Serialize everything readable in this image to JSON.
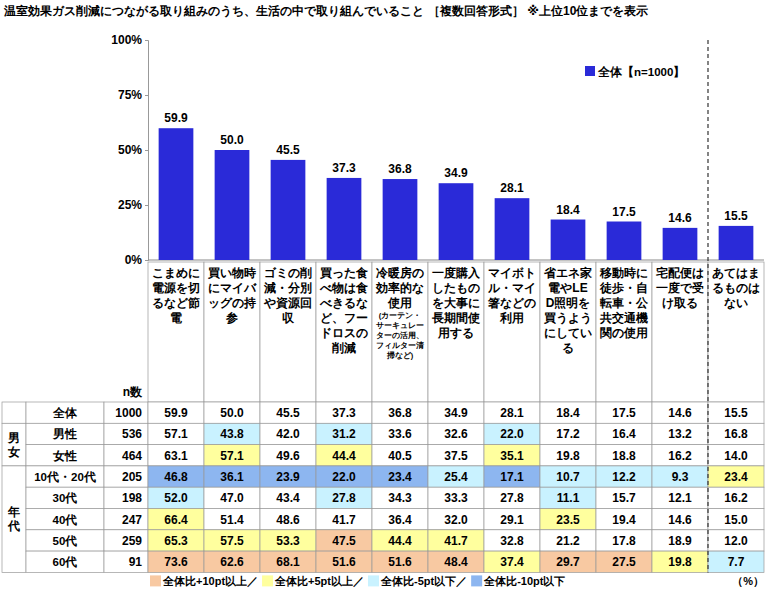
{
  "chart_data": {
    "type": "bar",
    "title": "温室効果ガス削減につながる取り組みのうち、生活の中で取り組んでいること",
    "subtitle": "［複数回答形式］ ※上位10位までを表示",
    "categories": [
      "こまめに電源を切るなど節電",
      "買い物時にマイバッグの持参",
      "ゴミの削減・分別や資源回収",
      "買った食べ物は食べきるなど、フードロスの削減",
      "冷暖房の効率的な使用",
      "一度購入したものを大事に長期間使用する",
      "マイボトル・マイ箸などの利用",
      "省エネ家電やLED照明を買うようにしている",
      "移動時に徒歩・自転車・公共交通機関の使用",
      "宅配便は一度で受け取る",
      "あてはまるものはない"
    ],
    "category_notes": [
      null,
      null,
      null,
      null,
      "(カーテン・サーキュレーターの活用、フィルター清掃など)",
      null,
      null,
      null,
      null,
      null,
      null
    ],
    "series": [
      {
        "name": "全体【n=1000】",
        "color": "#2a2ad8",
        "values": [
          59.9,
          50.0,
          45.5,
          37.3,
          36.8,
          34.9,
          28.1,
          18.4,
          17.5,
          14.6,
          15.5
        ],
        "value_labels": [
          "59.9",
          "50.0",
          "45.5",
          "37.3",
          "36.8",
          "34.9",
          "28.1",
          "18.4",
          "17.5",
          "14.6",
          "15.5"
        ]
      }
    ],
    "ylim": [
      0,
      100
    ],
    "yticks": [
      {
        "value": 0,
        "label": "0%"
      },
      {
        "value": 25,
        "label": "25%"
      },
      {
        "value": 50,
        "label": "50%"
      },
      {
        "value": 75,
        "label": "75%"
      },
      {
        "value": 100,
        "label": "100%"
      }
    ],
    "grid": false,
    "legend": "top-right",
    "data_labels": true,
    "table": {
      "n_header": "n数",
      "unit_label": "（%）",
      "rows": [
        {
          "group": null,
          "label": "全体",
          "n": 1000,
          "values": [
            59.9,
            50.0,
            45.5,
            37.3,
            36.8,
            34.9,
            28.1,
            18.4,
            17.5,
            14.6,
            15.5
          ],
          "value_labels": [
            "59.9",
            "50.0",
            "45.5",
            "37.3",
            "36.8",
            "34.9",
            "28.1",
            "18.4",
            "17.5",
            "14.6",
            "15.5"
          ]
        },
        {
          "group": "男女",
          "label": "男性",
          "n": 536,
          "values": [
            57.1,
            43.8,
            42.0,
            31.2,
            33.6,
            32.6,
            22.0,
            17.2,
            16.4,
            13.2,
            16.8
          ],
          "value_labels": [
            "57.1",
            "43.8",
            "42.0",
            "31.2",
            "33.6",
            "32.6",
            "22.0",
            "17.2",
            "16.4",
            "13.2",
            "16.8"
          ]
        },
        {
          "group": "男女",
          "label": "女性",
          "n": 464,
          "values": [
            63.1,
            57.1,
            49.6,
            44.4,
            40.5,
            37.5,
            35.1,
            19.8,
            18.8,
            16.2,
            14.0
          ],
          "value_labels": [
            "63.1",
            "57.1",
            "49.6",
            "44.4",
            "40.5",
            "37.5",
            "35.1",
            "19.8",
            "18.8",
            "16.2",
            "14.0"
          ]
        },
        {
          "group": "年代",
          "label": "10代・20代",
          "n": 205,
          "values": [
            46.8,
            36.1,
            23.9,
            22.0,
            23.4,
            25.4,
            17.1,
            10.7,
            12.2,
            9.3,
            23.4
          ],
          "value_labels": [
            "46.8",
            "36.1",
            "23.9",
            "22.0",
            "23.4",
            "25.4",
            "17.1",
            "10.7",
            "12.2",
            "9.3",
            "23.4"
          ]
        },
        {
          "group": "年代",
          "label": "30代",
          "n": 198,
          "values": [
            52.0,
            47.0,
            43.4,
            27.8,
            34.3,
            33.3,
            27.8,
            11.1,
            15.7,
            12.1,
            16.2
          ],
          "value_labels": [
            "52.0",
            "47.0",
            "43.4",
            "27.8",
            "34.3",
            "33.3",
            "27.8",
            "11.1",
            "15.7",
            "12.1",
            "16.2"
          ]
        },
        {
          "group": "年代",
          "label": "40代",
          "n": 247,
          "values": [
            66.4,
            51.4,
            48.6,
            41.7,
            36.4,
            32.0,
            29.1,
            23.5,
            19.4,
            14.6,
            15.0
          ],
          "value_labels": [
            "66.4",
            "51.4",
            "48.6",
            "41.7",
            "36.4",
            "32.0",
            "29.1",
            "23.5",
            "19.4",
            "14.6",
            "15.0"
          ]
        },
        {
          "group": "年代",
          "label": "50代",
          "n": 259,
          "values": [
            65.3,
            57.5,
            53.3,
            47.5,
            44.4,
            41.7,
            32.8,
            21.2,
            17.8,
            18.9,
            12.0
          ],
          "value_labels": [
            "65.3",
            "57.5",
            "53.3",
            "47.5",
            "44.4",
            "41.7",
            "32.8",
            "21.2",
            "17.8",
            "18.9",
            "12.0"
          ]
        },
        {
          "group": "年代",
          "label": "60代",
          "n": 91,
          "values": [
            73.6,
            62.6,
            68.1,
            51.6,
            51.6,
            48.4,
            37.4,
            29.7,
            27.5,
            19.8,
            7.7
          ],
          "value_labels": [
            "73.6",
            "62.6",
            "68.1",
            "51.6",
            "51.6",
            "48.4",
            "37.4",
            "29.7",
            "27.5",
            "19.8",
            "7.7"
          ]
        }
      ],
      "cell_legend": [
        {
          "label": "全体比+10pt以上／",
          "color": "#f8c9a2",
          "threshold": 10
        },
        {
          "label": "全体比+5pt以上／",
          "color": "#ffff9e",
          "threshold": 5
        },
        {
          "label": "全体比-5pt以下／",
          "color": "#c9f2ff",
          "threshold": -5
        },
        {
          "label": "全体比-10pt以下",
          "color": "#8db6f0",
          "threshold": -10
        }
      ]
    }
  }
}
